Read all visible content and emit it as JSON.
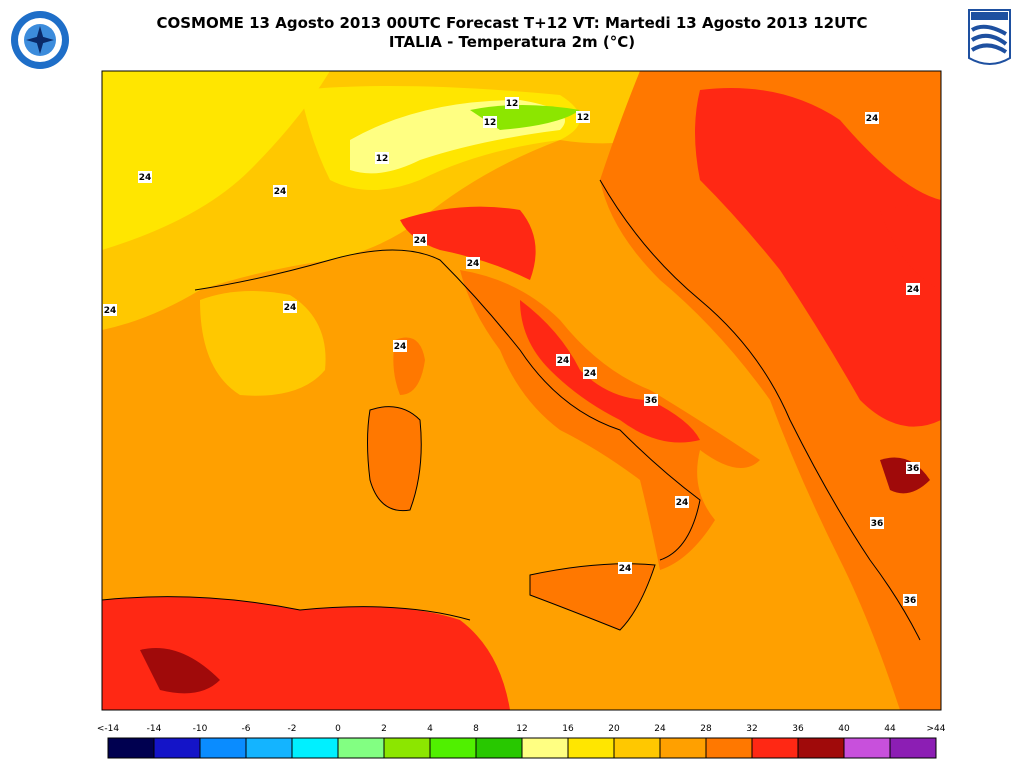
{
  "header": {
    "title_line_1": "COSMOME 13 Agosto 2013 00UTC Forecast T+12 VT: Martedi 13 Agosto 2013 12UTC",
    "title_line_2": "ITALIA - Temperatura 2m (°C)"
  },
  "contour_labels": [
    "12",
    "12",
    "12",
    "12",
    "24",
    "24",
    "24",
    "24",
    "24",
    "24",
    "24",
    "24",
    "24",
    "24",
    "24",
    "24",
    "24",
    "36",
    "36",
    "36",
    "36"
  ],
  "legend": {
    "labels": [
      "<-14",
      "-14",
      "-10",
      "-6",
      "-2",
      "0",
      "2",
      "4",
      "8",
      "12",
      "16",
      "20",
      "24",
      "28",
      "32",
      "36",
      "40",
      "44",
      ">44"
    ],
    "colors": [
      "#000050",
      "#1414c8",
      "#0a8cff",
      "#14b4ff",
      "#00f0ff",
      "#82ff82",
      "#8ce600",
      "#50f000",
      "#28c800",
      "#ffff82",
      "#ffe600",
      "#ffc800",
      "#ffa000",
      "#ff7800",
      "#ff2814",
      "#a00a0a",
      "#c850dc",
      "#8c1eb4"
    ]
  }
}
